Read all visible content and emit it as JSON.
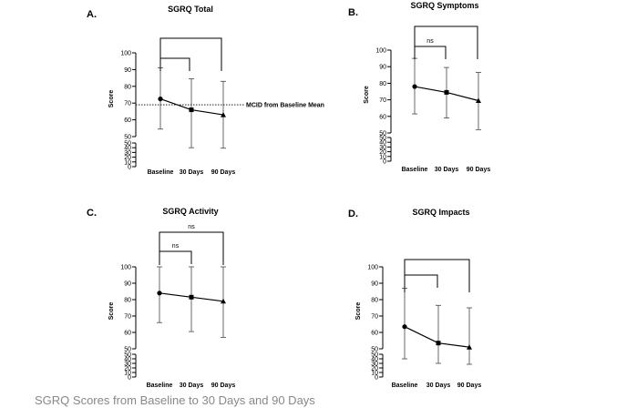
{
  "chart_data": [
    {
      "type": "line",
      "panel_letter": "A.",
      "title": "SGRQ Total",
      "ylabel": "Score",
      "categories": [
        "Baseline",
        "30 Days",
        "90 Days"
      ],
      "marker_shapes": [
        "circle",
        "square",
        "triangle"
      ],
      "values": [
        72.5,
        66,
        63
      ],
      "error_high": [
        91,
        84.5,
        83
      ],
      "error_low": [
        54.5,
        40,
        39
      ],
      "ylim": [
        0,
        100
      ],
      "yticks_upper": [
        50,
        60,
        70,
        80,
        90,
        100
      ],
      "yticks_lower": [
        0,
        10,
        20,
        30,
        40,
        50
      ],
      "reference_line": {
        "value": 69,
        "label": "MCID from Baseline Mean"
      },
      "brackets": [
        {
          "from": 0,
          "to": 1,
          "label": ""
        },
        {
          "from": 0,
          "to": 2,
          "label": ""
        }
      ]
    },
    {
      "type": "line",
      "panel_letter": "B.",
      "title": "SGRQ Symptoms",
      "ylabel": "Score",
      "categories": [
        "Baseline",
        "30 Days",
        "90 Days"
      ],
      "marker_shapes": [
        "circle",
        "square",
        "triangle"
      ],
      "values": [
        78,
        74.5,
        69.5
      ],
      "error_high": [
        95,
        89.5,
        86.5
      ],
      "error_low": [
        61.5,
        59,
        52
      ],
      "ylim": [
        0,
        100
      ],
      "yticks_upper": [
        50,
        60,
        70,
        80,
        90,
        100
      ],
      "yticks_lower": [
        0,
        10,
        20,
        30,
        40,
        50
      ],
      "reference_line": null,
      "brackets": [
        {
          "from": 0,
          "to": 1,
          "label": "ns"
        },
        {
          "from": 0,
          "to": 2,
          "label": ""
        }
      ]
    },
    {
      "type": "line",
      "panel_letter": "C.",
      "title": "SGRQ Activity",
      "ylabel": "Score",
      "categories": [
        "Baseline",
        "30 Days",
        "90 Days"
      ],
      "marker_shapes": [
        "circle",
        "square",
        "triangle"
      ],
      "values": [
        84,
        81.5,
        79
      ],
      "error_high": [
        100,
        100,
        100
      ],
      "error_low": [
        66,
        60.5,
        57
      ],
      "ylim": [
        0,
        100
      ],
      "yticks_upper": [
        50,
        60,
        70,
        80,
        90,
        100
      ],
      "yticks_lower": [
        0,
        10,
        20,
        30,
        40,
        50
      ],
      "reference_line": null,
      "brackets": [
        {
          "from": 0,
          "to": 1,
          "label": "ns"
        },
        {
          "from": 0,
          "to": 2,
          "label": "ns"
        }
      ]
    },
    {
      "type": "line",
      "panel_letter": "D.",
      "title": "SGRQ Impacts",
      "ylabel": "Score",
      "categories": [
        "Baseline",
        "30 Days",
        "90 Days"
      ],
      "marker_shapes": [
        "circle",
        "square",
        "triangle"
      ],
      "values": [
        63.5,
        53.5,
        51
      ],
      "error_high": [
        87,
        76.5,
        75
      ],
      "error_low": [
        40,
        30,
        28
      ],
      "ylim": [
        0,
        100
      ],
      "yticks_upper": [
        50,
        60,
        70,
        80,
        90,
        100
      ],
      "yticks_lower": [
        0,
        10,
        20,
        30,
        40,
        50
      ],
      "reference_line": null,
      "brackets": [
        {
          "from": 0,
          "to": 1,
          "label": ""
        },
        {
          "from": 0,
          "to": 2,
          "label": ""
        }
      ]
    }
  ],
  "caption": "SGRQ Scores from Baseline to 30 Days and 90 Days"
}
